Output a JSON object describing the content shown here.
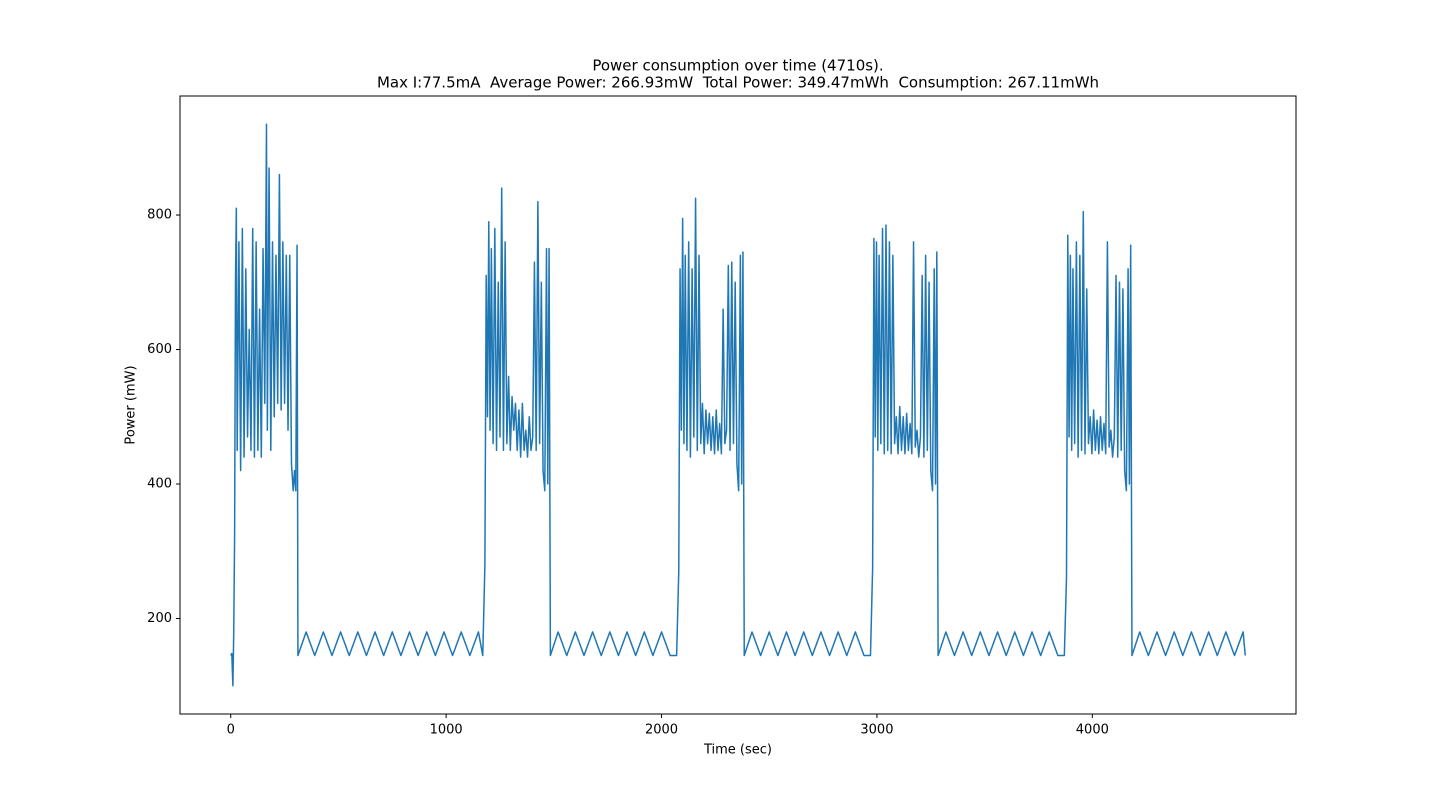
{
  "chart_data": {
    "type": "line",
    "title": "Power consumption over time (4710s).",
    "subtitle": "Max I:77.5mA  Average Power: 266.93mW  Total Power: 349.47mWh  Consumption: 267.11mWh",
    "x_label": "Time (sec)",
    "y_label": "Power (mW)",
    "xlim": [
      -235.5,
      4945.5
    ],
    "ylim": [
      58,
      977
    ],
    "xticks": [
      0,
      1000,
      2000,
      3000,
      4000
    ],
    "yticks": [
      200,
      400,
      600,
      800
    ],
    "color": "#1f77b4",
    "grid": false,
    "x": [
      0,
      5,
      10,
      14,
      18,
      22,
      26,
      30,
      38,
      46,
      54,
      62,
      70,
      78,
      86,
      94,
      102,
      110,
      118,
      126,
      134,
      142,
      150,
      158,
      166,
      170,
      178,
      186,
      194,
      202,
      210,
      218,
      226,
      234,
      242,
      250,
      258,
      266,
      274,
      282,
      290,
      296,
      302,
      308,
      312,
      350,
      390,
      430,
      470,
      510,
      550,
      590,
      630,
      670,
      710,
      750,
      790,
      830,
      870,
      910,
      950,
      990,
      1030,
      1070,
      1110,
      1150,
      1170,
      1180,
      1186,
      1192,
      1198,
      1204,
      1210,
      1218,
      1226,
      1234,
      1242,
      1250,
      1258,
      1266,
      1274,
      1282,
      1290,
      1298,
      1306,
      1314,
      1322,
      1330,
      1338,
      1346,
      1354,
      1362,
      1370,
      1378,
      1386,
      1394,
      1402,
      1410,
      1418,
      1426,
      1434,
      1442,
      1450,
      1458,
      1466,
      1472,
      1478,
      1484,
      1520,
      1560,
      1600,
      1640,
      1680,
      1720,
      1760,
      1800,
      1840,
      1880,
      1920,
      1960,
      2000,
      2040,
      2070,
      2080,
      2086,
      2092,
      2098,
      2104,
      2110,
      2118,
      2126,
      2134,
      2142,
      2150,
      2158,
      2166,
      2174,
      2182,
      2190,
      2198,
      2206,
      2214,
      2222,
      2230,
      2238,
      2246,
      2254,
      2262,
      2270,
      2278,
      2286,
      2294,
      2302,
      2310,
      2318,
      2326,
      2334,
      2342,
      2350,
      2358,
      2366,
      2372,
      2378,
      2384,
      2420,
      2460,
      2500,
      2540,
      2580,
      2620,
      2660,
      2700,
      2740,
      2780,
      2820,
      2860,
      2900,
      2940,
      2970,
      2980,
      2986,
      2992,
      2998,
      3004,
      3010,
      3018,
      3026,
      3034,
      3042,
      3050,
      3058,
      3066,
      3074,
      3082,
      3090,
      3098,
      3106,
      3114,
      3122,
      3130,
      3138,
      3146,
      3154,
      3162,
      3170,
      3178,
      3186,
      3194,
      3202,
      3210,
      3218,
      3226,
      3234,
      3242,
      3250,
      3258,
      3266,
      3272,
      3278,
      3284,
      3320,
      3360,
      3400,
      3440,
      3480,
      3520,
      3560,
      3600,
      3640,
      3680,
      3720,
      3760,
      3800,
      3840,
      3870,
      3880,
      3886,
      3892,
      3898,
      3904,
      3910,
      3918,
      3926,
      3934,
      3942,
      3950,
      3958,
      3966,
      3974,
      3982,
      3990,
      3998,
      4006,
      4014,
      4022,
      4030,
      4038,
      4046,
      4054,
      4062,
      4070,
      4078,
      4086,
      4094,
      4102,
      4110,
      4118,
      4126,
      4134,
      4142,
      4150,
      4158,
      4166,
      4172,
      4178,
      4184,
      4220,
      4260,
      4300,
      4340,
      4380,
      4420,
      4460,
      4500,
      4540,
      4580,
      4620,
      4660,
      4700,
      4710
    ],
    "values": [
      145,
      148,
      100,
      180,
      320,
      700,
      810,
      450,
      760,
      420,
      780,
      440,
      720,
      470,
      630,
      450,
      780,
      440,
      760,
      450,
      660,
      440,
      750,
      520,
      935,
      480,
      870,
      450,
      760,
      500,
      740,
      520,
      860,
      510,
      760,
      520,
      740,
      480,
      740,
      430,
      390,
      420,
      390,
      755,
      145,
      180,
      145,
      180,
      145,
      180,
      145,
      180,
      145,
      180,
      145,
      180,
      145,
      180,
      145,
      180,
      145,
      180,
      145,
      180,
      145,
      180,
      145,
      280,
      710,
      500,
      790,
      480,
      750,
      460,
      780,
      450,
      700,
      470,
      840,
      450,
      760,
      460,
      560,
      450,
      530,
      480,
      520,
      450,
      510,
      440,
      520,
      450,
      480,
      440,
      500,
      450,
      470,
      730,
      450,
      820,
      460,
      700,
      420,
      390,
      750,
      400,
      750,
      145,
      180,
      145,
      180,
      145,
      180,
      145,
      180,
      145,
      180,
      145,
      180,
      145,
      180,
      145,
      145,
      270,
      720,
      480,
      795,
      460,
      740,
      450,
      760,
      440,
      720,
      470,
      825,
      450,
      740,
      460,
      520,
      445,
      510,
      460,
      505,
      450,
      500,
      445,
      510,
      450,
      490,
      445,
      660,
      460,
      480,
      725,
      450,
      730,
      460,
      700,
      430,
      390,
      740,
      400,
      745,
      145,
      180,
      145,
      180,
      145,
      180,
      145,
      180,
      145,
      180,
      145,
      180,
      145,
      180,
      145,
      145,
      275,
      765,
      470,
      760,
      450,
      740,
      460,
      780,
      445,
      785,
      450,
      760,
      445,
      740,
      460,
      500,
      445,
      515,
      450,
      500,
      445,
      505,
      450,
      490,
      445,
      760,
      455,
      480,
      440,
      470,
      710,
      440,
      740,
      450,
      700,
      420,
      390,
      720,
      400,
      745,
      145,
      180,
      145,
      180,
      145,
      180,
      145,
      180,
      145,
      180,
      145,
      180,
      145,
      180,
      145,
      145,
      260,
      770,
      470,
      740,
      450,
      720,
      460,
      760,
      440,
      740,
      450,
      805,
      445,
      690,
      460,
      500,
      445,
      510,
      450,
      495,
      445,
      500,
      450,
      490,
      445,
      760,
      455,
      480,
      440,
      470,
      710,
      440,
      700,
      450,
      690,
      420,
      390,
      720,
      400,
      755,
      145,
      180,
      145,
      180,
      145,
      180,
      145,
      180,
      145,
      180,
      145,
      180,
      145,
      180,
      145
    ]
  }
}
